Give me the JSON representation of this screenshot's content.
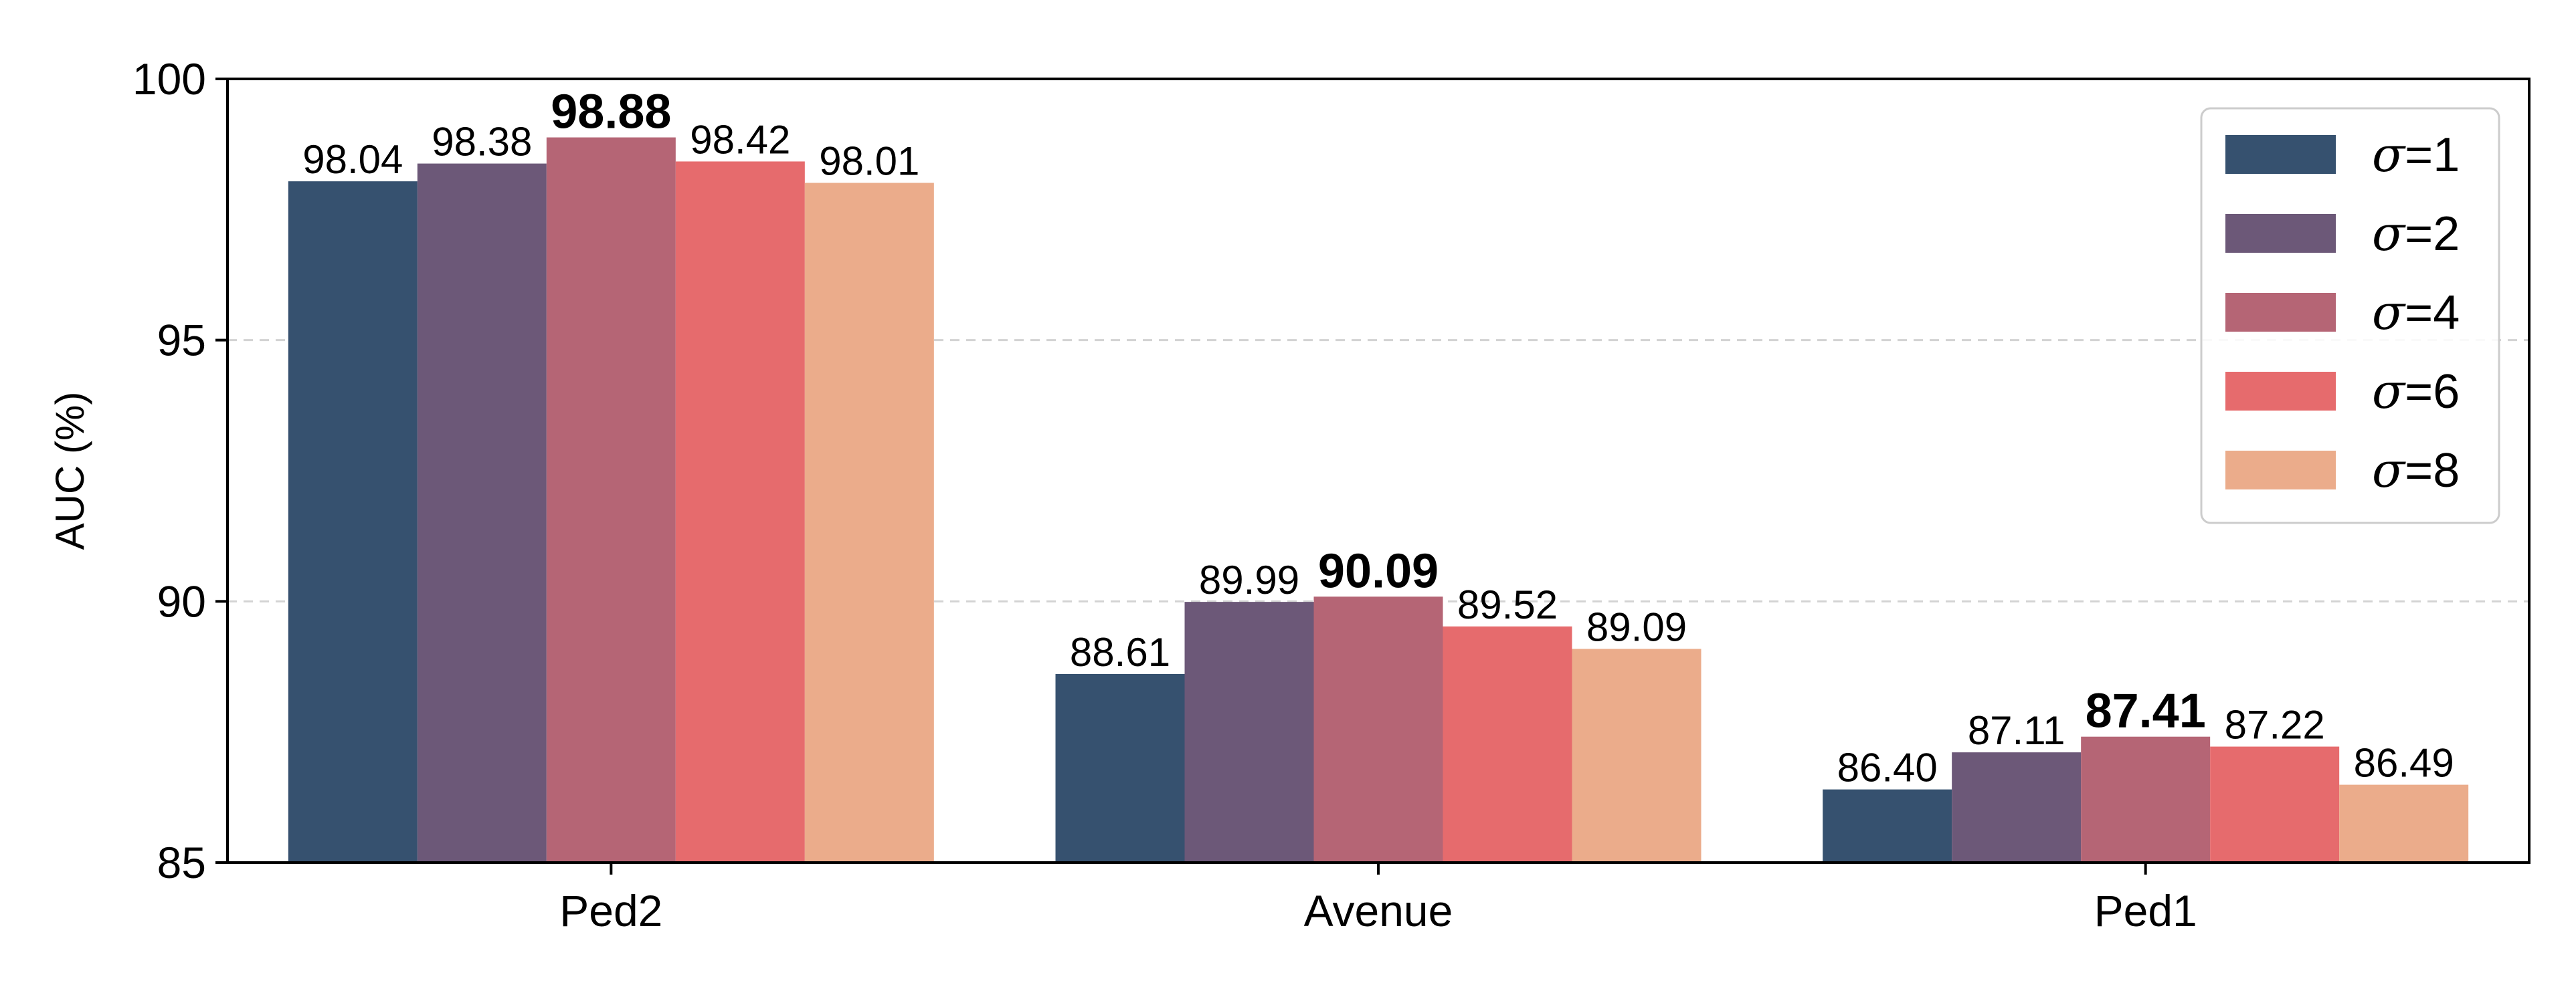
{
  "chart_data": {
    "type": "bar",
    "title": "",
    "xlabel": "",
    "ylabel": "AUC (%)",
    "ylim": [
      85,
      100
    ],
    "yticks": [
      85,
      90,
      95,
      100
    ],
    "grid": "horizontal-dashed",
    "legend_position": "top-right",
    "categories": [
      "Ped2",
      "Avenue",
      "Ped1"
    ],
    "series": [
      {
        "name": "σ=1",
        "color": "#36516F",
        "values": [
          98.04,
          88.61,
          86.4
        ],
        "labels": [
          "98.04",
          "88.61",
          "86.40"
        ]
      },
      {
        "name": "σ=2",
        "color": "#6C5878",
        "values": [
          98.38,
          89.99,
          87.11
        ],
        "labels": [
          "98.38",
          "89.99",
          "87.11"
        ]
      },
      {
        "name": "σ=4",
        "color": "#B56575",
        "values": [
          98.88,
          90.09,
          87.41
        ],
        "labels": [
          "98.88",
          "90.09",
          "87.41"
        ]
      },
      {
        "name": "σ=6",
        "color": "#E66B6D",
        "values": [
          98.42,
          89.52,
          87.22
        ],
        "labels": [
          "98.42",
          "89.52",
          "87.22"
        ]
      },
      {
        "name": "σ=8",
        "color": "#EBAC8B",
        "values": [
          98.01,
          89.09,
          86.49
        ],
        "labels": [
          "98.01",
          "89.09",
          "86.49"
        ]
      }
    ],
    "bold_series_index": 2
  }
}
